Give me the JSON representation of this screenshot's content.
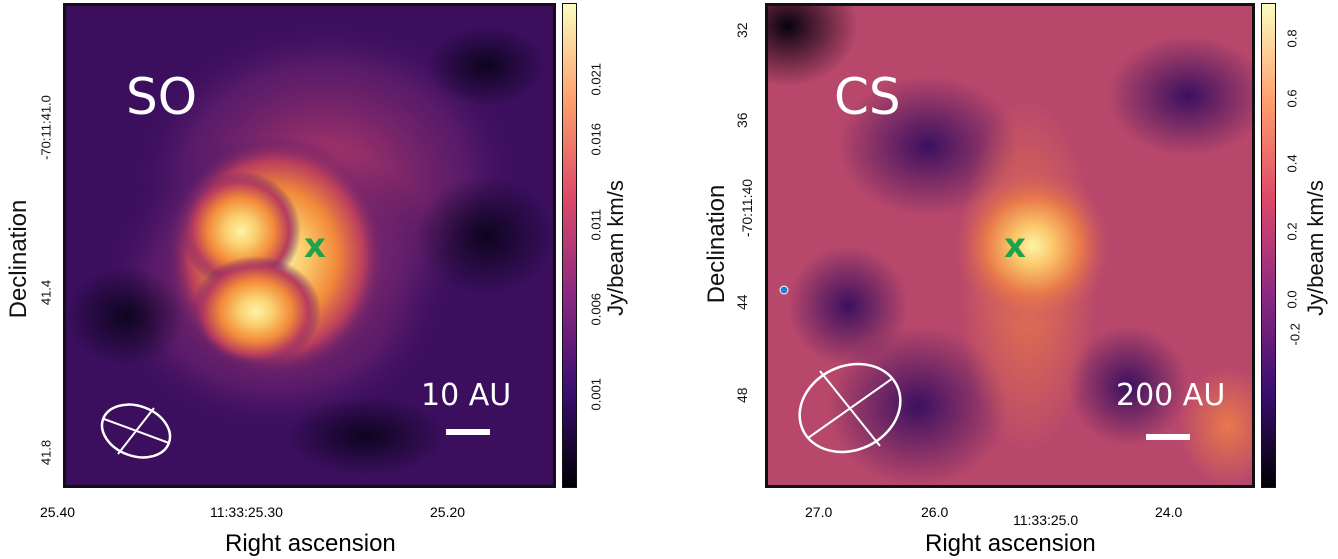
{
  "left": {
    "molecule": "SO",
    "scale_label": "10 AU",
    "marker": "x",
    "colorbar_label": "Jy/beam km/s",
    "colorbar_ticks": [
      "0.021",
      "0.016",
      "0.011",
      "0.006",
      "0.001"
    ],
    "x_ticks": [
      "25.40",
      "11:33:25.30",
      "25.20"
    ],
    "y_ticks": [
      "-70:11:41.0",
      "41.4",
      "41.8"
    ],
    "x_title": "Right ascension",
    "y_title": "Declination"
  },
  "right": {
    "molecule": "CS",
    "scale_label": "200 AU",
    "marker": "x",
    "colorbar_label": "Jy/beam km/s",
    "colorbar_ticks": [
      "0.8",
      "0.6",
      "0.4",
      "0.2",
      "0.0",
      "-0.2"
    ],
    "x_ticks": [
      "27.0",
      "26.0",
      "11:33:25.0",
      "24.0"
    ],
    "y_ticks": [
      "32",
      "36",
      "-70:11:40",
      "44",
      "48"
    ],
    "x_title": "Right ascension",
    "y_title": "Declination"
  },
  "colors": {
    "marker": "#1fa34a",
    "frame": "#111111",
    "overlay": "#ffffff"
  }
}
